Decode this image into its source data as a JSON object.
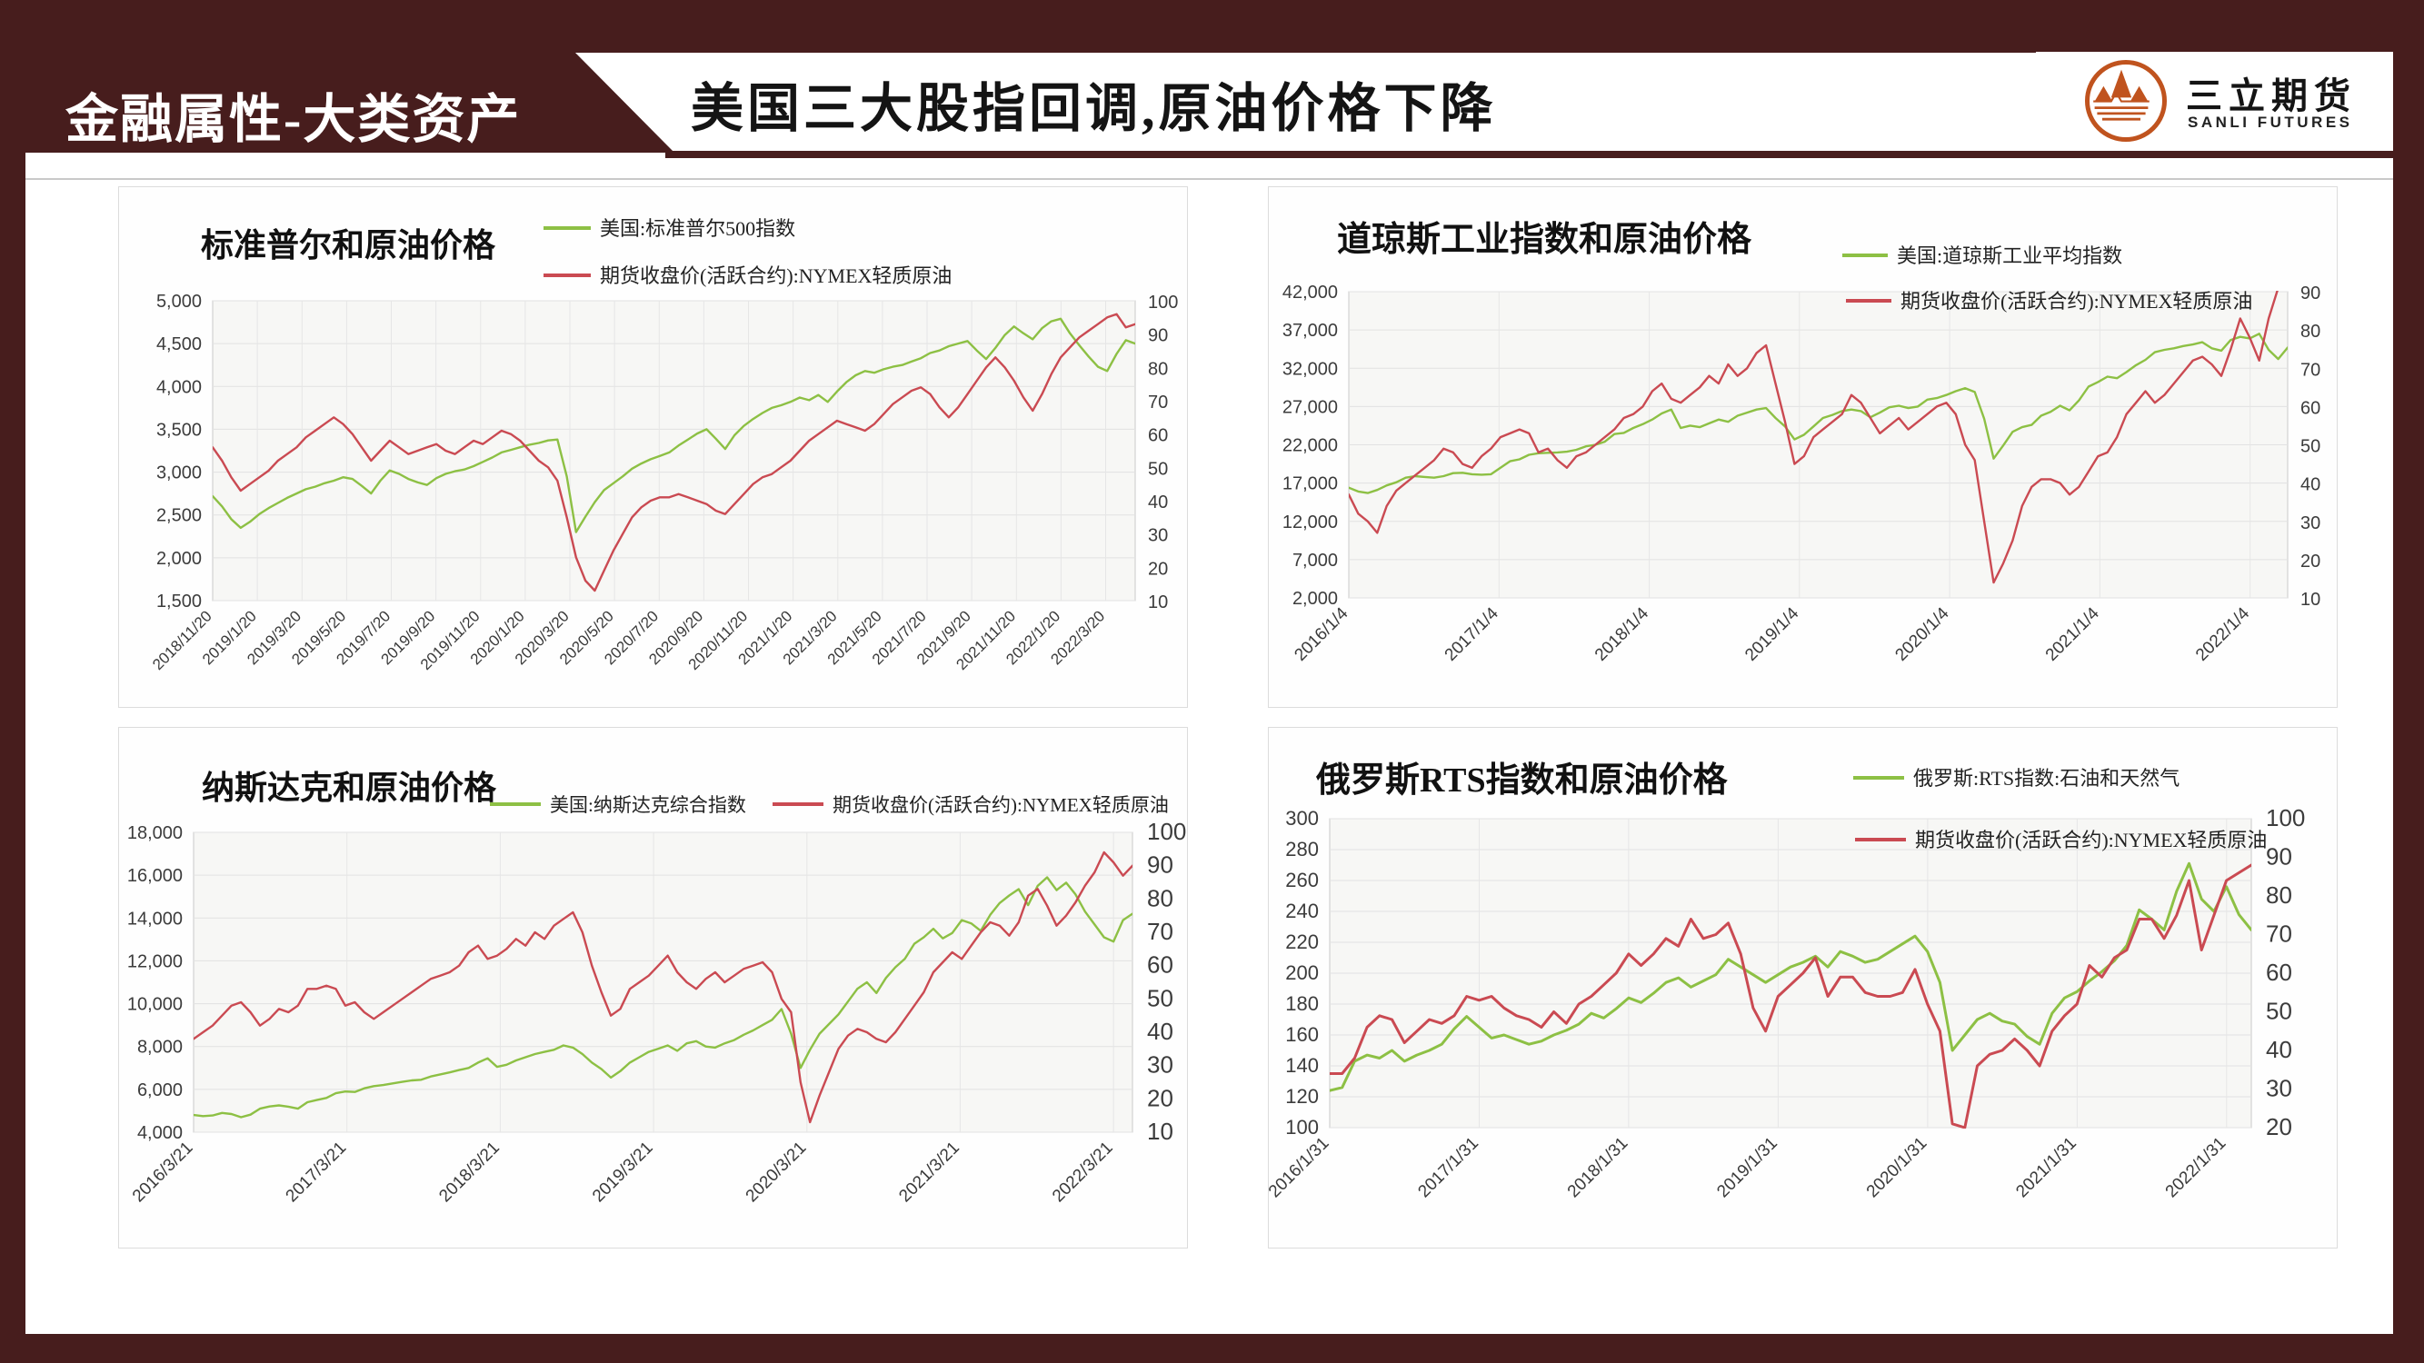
{
  "slide": {
    "section_title": "金融属性-大类资产",
    "main_title": "美国三大股指回调,原油价格下降"
  },
  "logo": {
    "name_cn": "三立期货",
    "name_en": "SANLI FUTURES",
    "mark": "mountain-sun-icon"
  },
  "colors": {
    "frame_maroon": "#471d1d",
    "index_green": "#8dc044",
    "oil_red": "#ca4a52",
    "logo_orange": "#c0531e"
  },
  "chart_data": [
    {
      "type": "line",
      "title": "标准普尔和原油价格",
      "legend_position": "top-right",
      "grid": true,
      "x_labels": [
        "2018/11/20",
        "2019/1/20",
        "2019/3/20",
        "2019/5/20",
        "2019/7/20",
        "2019/9/20",
        "2019/11/20",
        "2020/1/20",
        "2020/3/20",
        "2020/5/20",
        "2020/7/20",
        "2020/9/20",
        "2020/11/20",
        "2021/1/20",
        "2021/3/20",
        "2021/5/20",
        "2021/7/20",
        "2021/9/20",
        "2021/11/20",
        "2022/1/20",
        "2022/3/20"
      ],
      "left_axis": {
        "min": 1500,
        "max": 5000,
        "step": 500,
        "format": "thousands"
      },
      "right_axis": {
        "min": 10,
        "max": 100,
        "step": 10
      },
      "series": [
        {
          "name": "美国:标准普尔500指数",
          "axis": "left",
          "color": "#8dc044",
          "values": [
            2720,
            2600,
            2450,
            2350,
            2420,
            2510,
            2580,
            2640,
            2700,
            2750,
            2800,
            2830,
            2870,
            2900,
            2940,
            2920,
            2840,
            2750,
            2900,
            3020,
            2980,
            2920,
            2880,
            2850,
            2930,
            2980,
            3010,
            3030,
            3070,
            3120,
            3170,
            3230,
            3260,
            3290,
            3320,
            3340,
            3370,
            3380,
            2950,
            2300,
            2480,
            2650,
            2790,
            2870,
            2950,
            3040,
            3100,
            3150,
            3190,
            3230,
            3310,
            3380,
            3450,
            3500,
            3390,
            3270,
            3430,
            3540,
            3620,
            3690,
            3750,
            3780,
            3820,
            3870,
            3840,
            3900,
            3820,
            3940,
            4050,
            4130,
            4180,
            4160,
            4200,
            4230,
            4250,
            4290,
            4330,
            4390,
            4420,
            4470,
            4500,
            4530,
            4420,
            4320,
            4450,
            4600,
            4700,
            4620,
            4550,
            4680,
            4760,
            4790,
            4620,
            4480,
            4350,
            4230,
            4180,
            4380,
            4540,
            4500
          ]
        },
        {
          "name": "期货收盘价(活跃合约):NYMEX轻质原油",
          "axis": "right",
          "color": "#ca4a52",
          "values": [
            56,
            52,
            47,
            43,
            45,
            47,
            49,
            52,
            54,
            56,
            59,
            61,
            63,
            65,
            63,
            60,
            56,
            52,
            55,
            58,
            56,
            54,
            55,
            56,
            57,
            55,
            54,
            56,
            58,
            57,
            59,
            61,
            60,
            58,
            55,
            52,
            50,
            46,
            35,
            23,
            16,
            13,
            19,
            25,
            30,
            35,
            38,
            40,
            41,
            41,
            42,
            41,
            40,
            39,
            37,
            36,
            39,
            42,
            45,
            47,
            48,
            50,
            52,
            55,
            58,
            60,
            62,
            64,
            63,
            62,
            61,
            63,
            66,
            69,
            71,
            73,
            74,
            72,
            68,
            65,
            68,
            72,
            76,
            80,
            83,
            80,
            76,
            71,
            67,
            72,
            78,
            83,
            86,
            89,
            91,
            93,
            95,
            96,
            92,
            93
          ]
        }
      ]
    },
    {
      "type": "line",
      "title": "道琼斯工业指数和原油价格",
      "legend_position": "top-right",
      "grid": true,
      "x_labels": [
        "2016/1/4",
        "2017/1/4",
        "2018/1/4",
        "2019/1/4",
        "2020/1/4",
        "2021/1/4",
        "2022/1/4"
      ],
      "left_axis": {
        "min": 2000,
        "max": 42000,
        "step": 5000,
        "format": "thousands"
      },
      "right_axis": {
        "min": 10,
        "max": 90,
        "step": 10
      },
      "series": [
        {
          "name": "美国:道琼斯工业平均指数",
          "axis": "left",
          "color": "#8dc044",
          "values": [
            16400,
            15900,
            15700,
            16100,
            16700,
            17100,
            17700,
            17900,
            17800,
            17700,
            17900,
            18300,
            18350,
            18150,
            18100,
            18150,
            19000,
            19850,
            20100,
            20700,
            20900,
            20950,
            21000,
            21100,
            21350,
            21800,
            22000,
            22400,
            23400,
            23550,
            24200,
            24700,
            25300,
            26100,
            26600,
            24200,
            24500,
            24300,
            24800,
            25300,
            25000,
            25800,
            26200,
            26600,
            26800,
            25500,
            24400,
            22700,
            23300,
            24400,
            25500,
            25900,
            26400,
            26600,
            26400,
            25600,
            26200,
            26900,
            27100,
            26800,
            27000,
            27900,
            28100,
            28500,
            29000,
            29400,
            28900,
            25400,
            20200,
            21900,
            23700,
            24300,
            24600,
            25800,
            26300,
            27100,
            26500,
            27800,
            29600,
            30200,
            30900,
            30700,
            31500,
            32400,
            33100,
            34100,
            34400,
            34600,
            34900,
            35100,
            35400,
            34600,
            34300,
            35700,
            36100,
            35900,
            36500,
            34400,
            33200,
            34700
          ]
        },
        {
          "name": "期货收盘价(活跃合约):NYMEX轻质原油",
          "axis": "right",
          "color": "#ca4a52",
          "values": [
            37,
            32,
            30,
            27,
            34,
            38,
            40,
            42,
            44,
            46,
            49,
            48,
            45,
            44,
            47,
            49,
            52,
            53,
            54,
            53,
            48,
            49,
            46,
            44,
            47,
            48,
            50,
            52,
            54,
            57,
            58,
            60,
            64,
            66,
            62,
            61,
            63,
            65,
            68,
            66,
            71,
            68,
            70,
            74,
            76,
            66,
            56,
            45,
            47,
            52,
            54,
            56,
            58,
            63,
            61,
            57,
            53,
            55,
            57,
            54,
            56,
            58,
            60,
            61,
            58,
            50,
            46,
            30,
            14,
            19,
            25,
            34,
            39,
            41,
            41,
            40,
            37,
            39,
            43,
            47,
            48,
            52,
            58,
            61,
            64,
            61,
            63,
            66,
            69,
            72,
            73,
            71,
            68,
            75,
            83,
            78,
            72,
            83,
            91,
            95
          ]
        }
      ]
    },
    {
      "type": "line",
      "title": "纳斯达克和原油价格",
      "legend_position": "top-inline",
      "grid": true,
      "x_labels": [
        "2016/3/21",
        "2017/3/21",
        "2018/3/21",
        "2019/3/21",
        "2020/3/21",
        "2021/3/21",
        "2022/3/21"
      ],
      "left_axis": {
        "min": 4000,
        "max": 18000,
        "step": 2000,
        "format": "thousands"
      },
      "right_axis": {
        "min": 10,
        "max": 100,
        "step": 10
      },
      "series": [
        {
          "name": "美国:纳斯达克综合指数",
          "axis": "left",
          "color": "#8dc044",
          "values": [
            4800,
            4750,
            4780,
            4900,
            4850,
            4700,
            4820,
            5100,
            5200,
            5250,
            5190,
            5100,
            5400,
            5500,
            5600,
            5820,
            5900,
            5880,
            6050,
            6150,
            6200,
            6280,
            6350,
            6420,
            6450,
            6600,
            6700,
            6790,
            6900,
            7000,
            7250,
            7450,
            7050,
            7150,
            7350,
            7500,
            7650,
            7750,
            7850,
            8050,
            7950,
            7650,
            7250,
            6950,
            6550,
            6850,
            7250,
            7500,
            7750,
            7900,
            8050,
            7800,
            8150,
            8250,
            8000,
            7950,
            8150,
            8300,
            8550,
            8750,
            9000,
            9250,
            9750,
            8600,
            7000,
            7850,
            8600,
            9050,
            9500,
            10100,
            10700,
            11000,
            10500,
            11200,
            11700,
            12100,
            12800,
            13100,
            13500,
            13050,
            13300,
            13900,
            13750,
            13400,
            14150,
            14700,
            15050,
            15350,
            14600,
            15500,
            15900,
            15300,
            15650,
            15100,
            14300,
            13700,
            13100,
            12900,
            13900,
            14200
          ]
        },
        {
          "name": "期货收盘价(活跃合约):NYMEX轻质原油",
          "axis": "right",
          "color": "#ca4a52",
          "values": [
            38,
            40,
            42,
            45,
            48,
            49,
            46,
            42,
            44,
            47,
            46,
            48,
            53,
            53,
            54,
            53,
            48,
            49,
            46,
            44,
            46,
            48,
            50,
            52,
            54,
            56,
            57,
            58,
            60,
            64,
            66,
            62,
            63,
            65,
            68,
            66,
            70,
            68,
            72,
            74,
            76,
            70,
            60,
            52,
            45,
            47,
            53,
            55,
            57,
            60,
            63,
            58,
            55,
            53,
            56,
            58,
            55,
            57,
            59,
            60,
            61,
            58,
            50,
            46,
            25,
            13,
            21,
            28,
            35,
            39,
            41,
            40,
            38,
            37,
            40,
            44,
            48,
            52,
            58,
            61,
            64,
            62,
            66,
            70,
            73,
            72,
            69,
            73,
            81,
            83,
            78,
            72,
            75,
            79,
            84,
            88,
            94,
            91,
            87,
            90
          ]
        }
      ]
    },
    {
      "type": "line",
      "title": "俄罗斯RTS指数和原油价格",
      "legend_position": "top-right",
      "grid": true,
      "x_labels": [
        "2016/1/31",
        "2017/1/31",
        "2018/1/31",
        "2019/1/31",
        "2020/1/31",
        "2021/1/31",
        "2022/1/31"
      ],
      "left_axis": {
        "min": 100,
        "max": 300,
        "step": 20,
        "format": "plain"
      },
      "right_axis": {
        "min": 20,
        "max": 100,
        "step": 10
      },
      "series": [
        {
          "name": "俄罗斯:RTS指数:石油和天然气",
          "axis": "left",
          "color": "#8dc044",
          "values": [
            124,
            126,
            143,
            147,
            145,
            150,
            143,
            147,
            150,
            154,
            164,
            172,
            165,
            158,
            160,
            157,
            154,
            156,
            160,
            163,
            167,
            174,
            171,
            177,
            184,
            181,
            187,
            194,
            197,
            191,
            195,
            199,
            209,
            204,
            199,
            194,
            199,
            204,
            207,
            211,
            204,
            214,
            211,
            207,
            209,
            214,
            219,
            224,
            214,
            194,
            150,
            160,
            170,
            174,
            169,
            167,
            159,
            154,
            174,
            184,
            188,
            195,
            201,
            208,
            218,
            241,
            235,
            228,
            253,
            271,
            248,
            240,
            256,
            238,
            228
          ]
        },
        {
          "name": "期货收盘价(活跃合约):NYMEX轻质原油",
          "axis": "right",
          "color": "#ca4a52",
          "values": [
            34,
            34,
            38,
            46,
            49,
            48,
            42,
            45,
            48,
            47,
            49,
            54,
            53,
            54,
            51,
            49,
            48,
            46,
            50,
            47,
            52,
            54,
            57,
            60,
            65,
            62,
            65,
            69,
            67,
            74,
            69,
            70,
            73,
            65,
            51,
            45,
            54,
            57,
            60,
            64,
            54,
            59,
            59,
            55,
            54,
            54,
            55,
            61,
            52,
            45,
            21,
            20,
            36,
            39,
            40,
            43,
            40,
            36,
            45,
            49,
            52,
            62,
            59,
            64,
            66,
            74,
            74,
            69,
            75,
            84,
            66,
            75,
            84,
            86,
            88
          ]
        }
      ]
    }
  ]
}
